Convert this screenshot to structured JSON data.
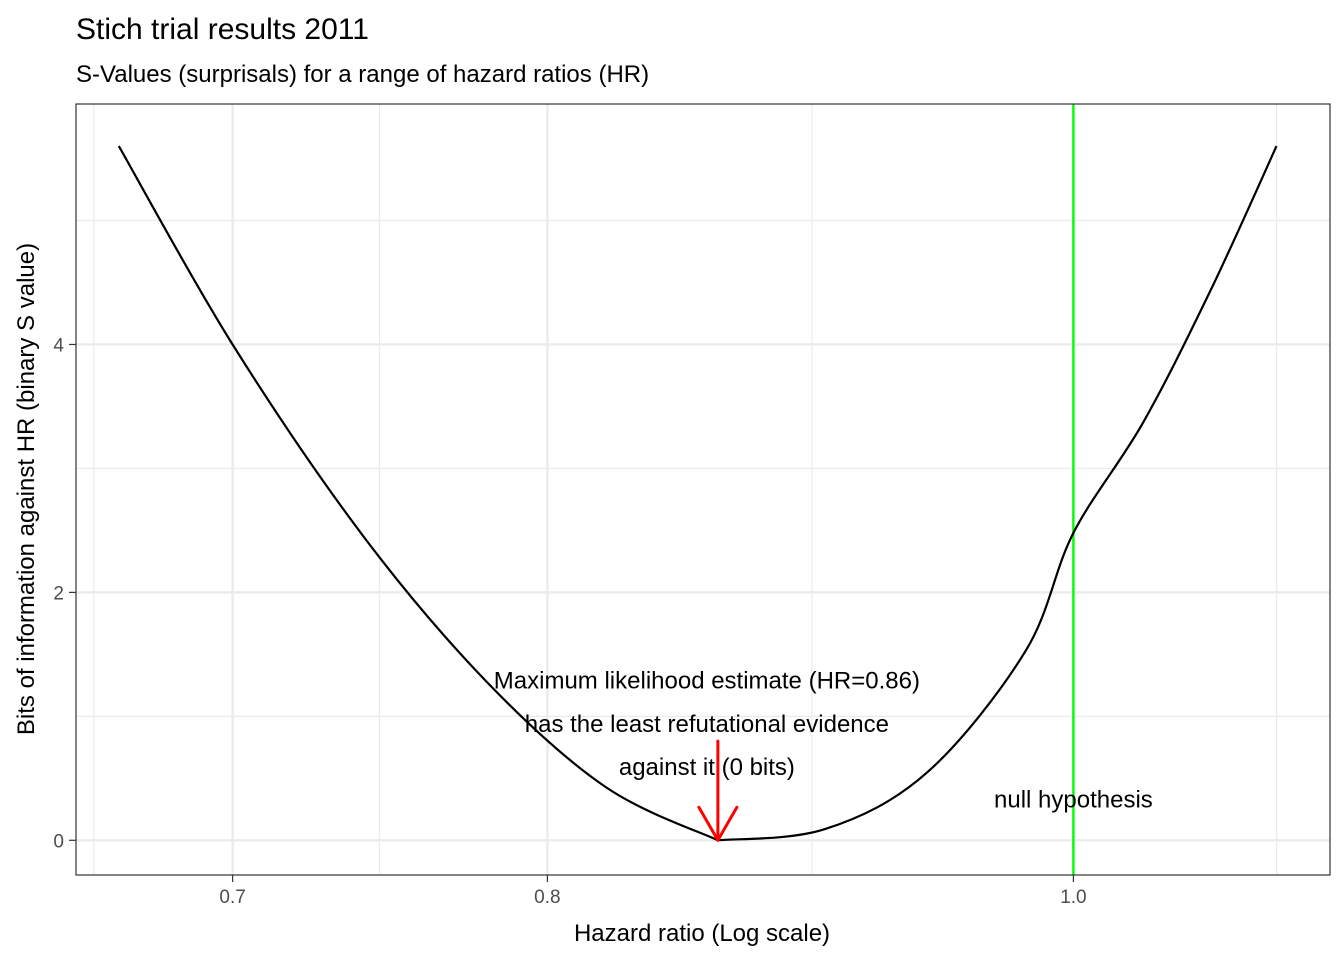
{
  "chart_data": {
    "type": "line",
    "title": "Stich trial results 2011",
    "subtitle": "S-Values (surprisals) for a range of hazard ratios (HR)",
    "xlabel": "Hazard ratio (Log scale)",
    "ylabel": "Bits of information against HR (binary S value)",
    "x_scale": "log",
    "xlim": [
      0.655,
      1.115
    ],
    "ylim": [
      -0.28,
      5.94
    ],
    "x_ticks": [
      {
        "value": 0.7,
        "label": "0.7"
      },
      {
        "value": 0.8,
        "label": "0.8"
      },
      {
        "value": 1.0,
        "label": "1.0"
      }
    ],
    "x_minor_gridlines": [
      0.66,
      0.745,
      0.895,
      1.09
    ],
    "y_ticks": [
      {
        "value": 0,
        "label": "0"
      },
      {
        "value": 2,
        "label": "2"
      },
      {
        "value": 4,
        "label": "4"
      }
    ],
    "y_minor_gridlines": [
      1,
      3,
      5
    ],
    "grid": true,
    "series": [
      {
        "color": "#000000",
        "x": [
          0.667,
          0.7,
          0.74,
          0.78,
          0.82,
          0.86,
          0.9,
          0.94,
          0.98,
          1.0,
          1.03,
          1.06,
          1.09
        ],
        "y": [
          5.6,
          4.0,
          2.45,
          1.27,
          0.43,
          0.0,
          0.09,
          0.55,
          1.53,
          2.48,
          3.37,
          4.44,
          5.6
        ]
      }
    ],
    "reference_line": {
      "x": 1.0,
      "color": "#00ff00"
    },
    "annotations": [
      {
        "lines": [
          "Maximum likelihood estimate (HR=0.86)",
          "has the least refutational evidence",
          "against it (0 bits)"
        ],
        "x": 0.856,
        "y": 1.29,
        "line_step": 0.35
      },
      {
        "lines": [
          "null hypothesis"
        ],
        "x": 1.0,
        "y": 0.33,
        "line_step": 0
      }
    ],
    "arrow": {
      "x": 0.86,
      "y_from": 0.8,
      "y_to": 0.0,
      "color": "#ff0000"
    }
  }
}
